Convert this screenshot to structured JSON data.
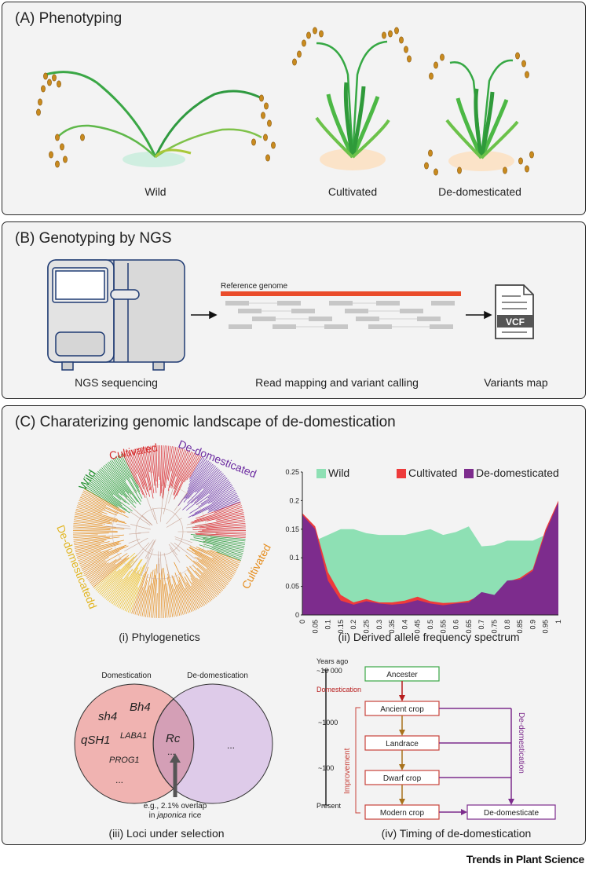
{
  "panelA": {
    "title": "(A) Phenotyping",
    "labels": {
      "wild": "Wild",
      "cultivated": "Cultivated",
      "dedom": "De-domesticated"
    }
  },
  "panelB": {
    "title": "(B) Genotyping by NGS",
    "reference": "Reference genome",
    "vcf": "VCF",
    "labels": {
      "ngs": "NGS sequencing",
      "mapping": "Read mapping and variant calling",
      "variants": "Variants map"
    }
  },
  "panelC": {
    "title": "(C) Charaterizing genomic landscape of de-domestication",
    "tree": {
      "wild": "Wild",
      "cultivated_top": "Cultivated",
      "dedom_top": "De-domesticated",
      "cultivated_right": "Cultivated",
      "dedom_left": "De-domesticatedd",
      "caption": "(i) Phylogenetics"
    },
    "chart_caption": "(ii) Derived allele frequency spectrum",
    "venn": {
      "left_title": "Domestication",
      "right_title": "De-domestication",
      "genes": [
        "sh4",
        "Bh4",
        "qSH1",
        "LABA1",
        "PROG1",
        "..."
      ],
      "overlap_gene": "Rc",
      "overlap_more": "...",
      "right_more": "...",
      "note_line1": "e.g., 2.1% overlap",
      "note_line2_pre": "in ",
      "note_line2_em": "japonica",
      "note_line2_post": " rice",
      "caption": "(iii) Loci under selection"
    },
    "timing": {
      "years_ago": "Years ago",
      "ticks": [
        "~10 000",
        "~1000",
        "~100",
        "Present"
      ],
      "nodes": [
        "Ancester",
        "Ancient crop",
        "Landrace",
        "Dwarf crop",
        "Modern crop",
        "De-domesticate"
      ],
      "domestication": "Domestication",
      "improvement": "Improvement",
      "dedomestication": "De-domestication",
      "caption": "(iv) Timing of de-domestication"
    }
  },
  "chart_data": {
    "type": "area",
    "x": [
      0,
      0.05,
      0.1,
      0.15,
      0.2,
      0.25,
      0.3,
      0.35,
      0.4,
      0.45,
      0.5,
      0.55,
      0.6,
      0.65,
      0.7,
      0.75,
      0.8,
      0.85,
      0.9,
      0.95,
      1
    ],
    "xticks": [
      "0",
      "0.05",
      "0.1",
      "0.15",
      "0.2",
      "0.25",
      "0.3",
      "0.35",
      "0.4",
      "0.45",
      "0.5",
      "0.55",
      "0.6",
      "0.65",
      "0.7",
      "0.75",
      "0.8",
      "0.85",
      "0.9",
      "0.95",
      "1"
    ],
    "yticks": [
      "0",
      "0.05",
      "0.1",
      "0.15",
      "0.2",
      "0.25"
    ],
    "ylim": [
      0,
      0.25
    ],
    "xlim": [
      0,
      1
    ],
    "legend_position": "top",
    "series": [
      {
        "name": "Wild",
        "color": "#8ee0b4",
        "values": [
          0.14,
          0.13,
          0.14,
          0.15,
          0.15,
          0.143,
          0.14,
          0.14,
          0.14,
          0.145,
          0.15,
          0.14,
          0.145,
          0.155,
          0.12,
          0.122,
          0.13,
          0.13,
          0.13,
          0.14,
          0.14
        ]
      },
      {
        "name": "Cultivated",
        "color": "#ee3b3b",
        "values": [
          0.178,
          0.155,
          0.075,
          0.035,
          0.022,
          0.028,
          0.022,
          0.022,
          0.025,
          0.032,
          0.024,
          0.021,
          0.022,
          0.025,
          0.035,
          0.03,
          0.058,
          0.065,
          0.08,
          0.15,
          0.2
        ]
      },
      {
        "name": "De-domesticated",
        "color": "#7d2c8d",
        "values": [
          0.175,
          0.15,
          0.06,
          0.025,
          0.018,
          0.024,
          0.02,
          0.018,
          0.02,
          0.026,
          0.02,
          0.017,
          0.02,
          0.022,
          0.04,
          0.035,
          0.06,
          0.062,
          0.077,
          0.145,
          0.197
        ]
      }
    ]
  },
  "footer": "Trends in Plant Science"
}
